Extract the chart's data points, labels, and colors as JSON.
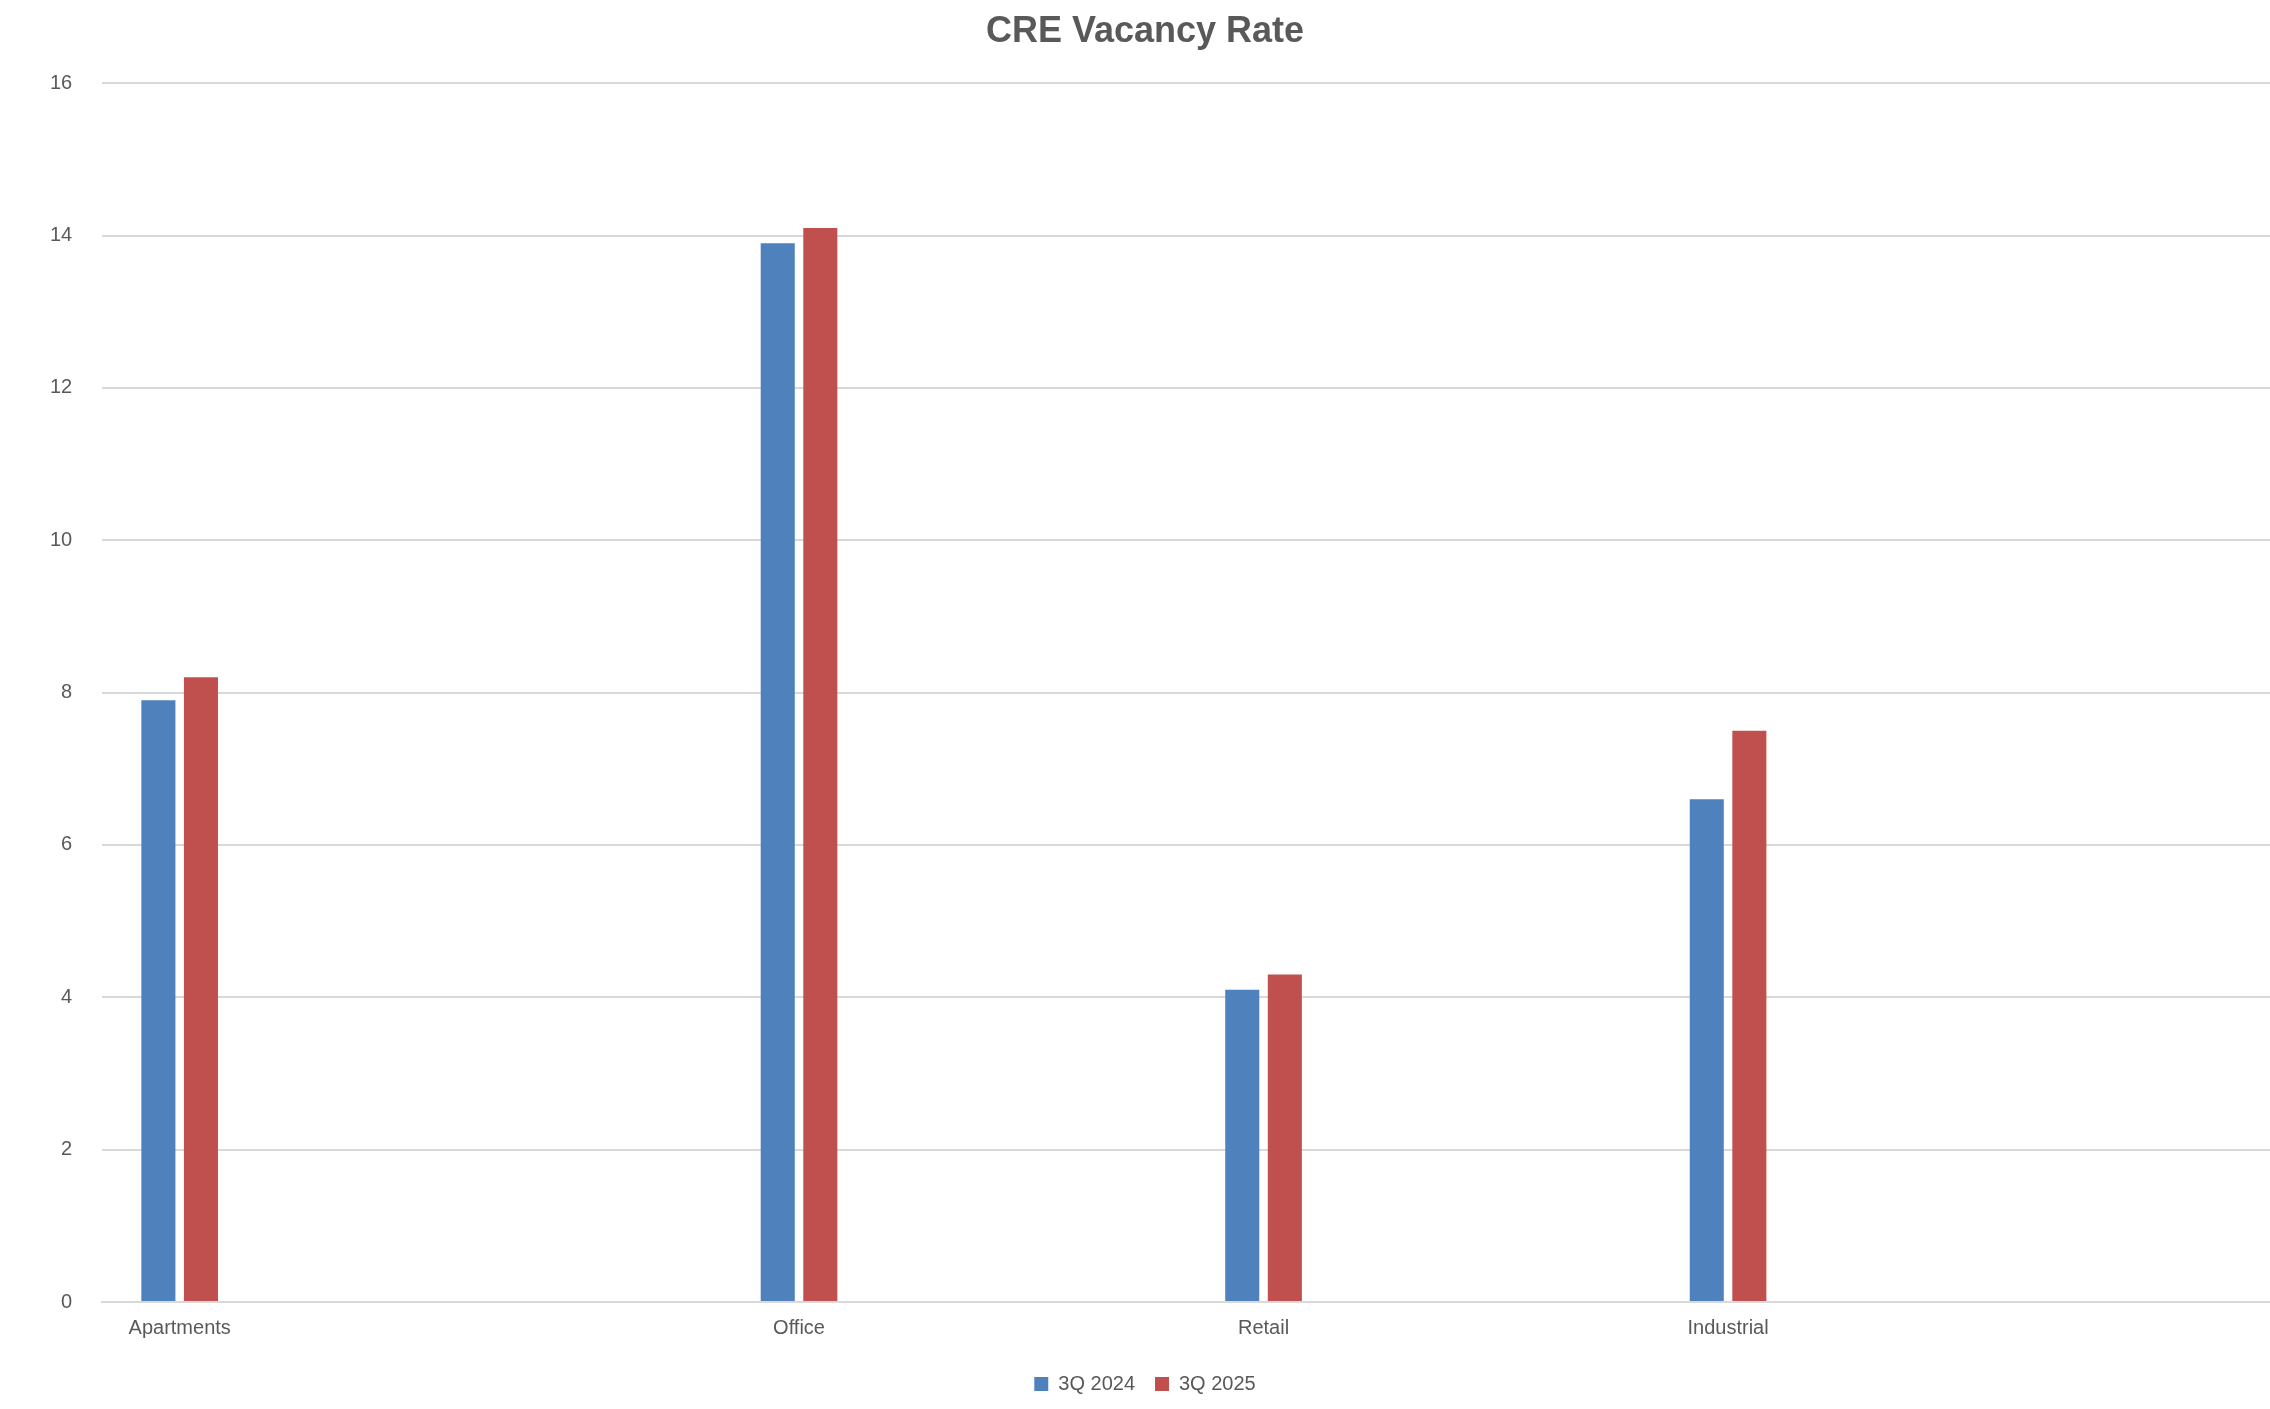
{
  "chart_data": {
    "type": "bar",
    "title": "CRE Vacancy Rate",
    "categories": [
      "Apartments",
      null,
      null,
      null,
      "Office",
      null,
      null,
      "Retail",
      null,
      null,
      "Industrial",
      null,
      null,
      null
    ],
    "series": [
      {
        "name": "3Q 2024",
        "color": "#4f81bd",
        "values": [
          7.9,
          null,
          null,
          null,
          13.9,
          null,
          null,
          4.1,
          null,
          null,
          6.6,
          null,
          null,
          null
        ]
      },
      {
        "name": "3Q 2025",
        "color": "#c0504d",
        "values": [
          8.2,
          null,
          null,
          null,
          14.1,
          null,
          null,
          4.3,
          null,
          null,
          7.5,
          null,
          null,
          null
        ]
      }
    ],
    "ylim": [
      0,
      16
    ],
    "yticks": [
      0,
      2,
      4,
      6,
      8,
      10,
      12,
      14,
      16
    ],
    "grid": "y",
    "legend": "bottom"
  }
}
